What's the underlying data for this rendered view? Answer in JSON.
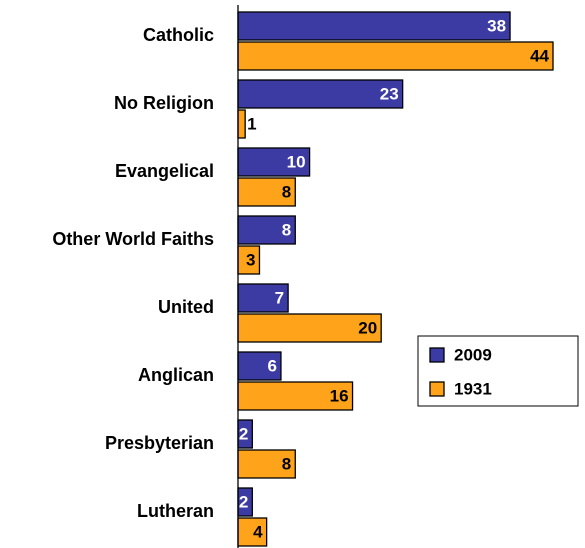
{
  "chart_data": {
    "type": "bar",
    "orientation": "horizontal",
    "categories": [
      "Catholic",
      "No Religion",
      "Evangelical",
      "Other World Faiths",
      "United",
      "Anglican",
      "Presbyterian",
      "Lutheran"
    ],
    "series": [
      {
        "name": "2009",
        "color": "#3b3ba3",
        "values": [
          38,
          23,
          10,
          8,
          7,
          6,
          2,
          2
        ]
      },
      {
        "name": "1931",
        "color": "#ffa31a",
        "values": [
          44,
          1,
          8,
          3,
          20,
          16,
          8,
          4
        ]
      }
    ],
    "legend": "right"
  }
}
